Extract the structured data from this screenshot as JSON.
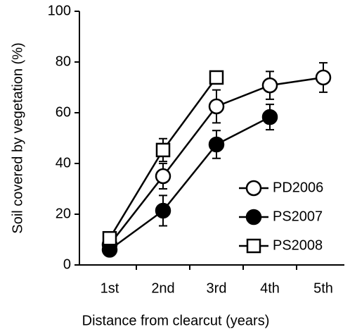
{
  "chart_data": {
    "type": "line",
    "x_label": "Distance from clearcut (years)",
    "y_label": "Soil covered by vegetation (%)",
    "categories": [
      "1st",
      "2nd",
      "3rd",
      "4th",
      "5th"
    ],
    "series": [
      {
        "name": "PD2006",
        "color": "#000000",
        "marker": "circle",
        "marker_fill": "#ffffff",
        "values": [
          8,
          35,
          62.5,
          70.8,
          73.9
        ],
        "errors": [
          2,
          5,
          6.5,
          5.5,
          5.8
        ]
      },
      {
        "name": "PS2007",
        "color": "#000000",
        "marker": "circle",
        "marker_fill": "#000000",
        "values": [
          6,
          21.4,
          47.5,
          58.3,
          null
        ],
        "errors": [
          2,
          6,
          5.5,
          5,
          null
        ]
      },
      {
        "name": "PS2008",
        "color": "#000000",
        "marker": "square",
        "marker_fill": "#ffffff",
        "values": [
          10.5,
          45.3,
          73.9,
          null,
          null
        ],
        "errors": [
          2,
          4.5,
          2,
          null,
          null
        ]
      }
    ],
    "ylim": [
      0,
      100
    ],
    "yticks": [
      0,
      20,
      40,
      60,
      80,
      100
    ],
    "legend": "lower right"
  }
}
